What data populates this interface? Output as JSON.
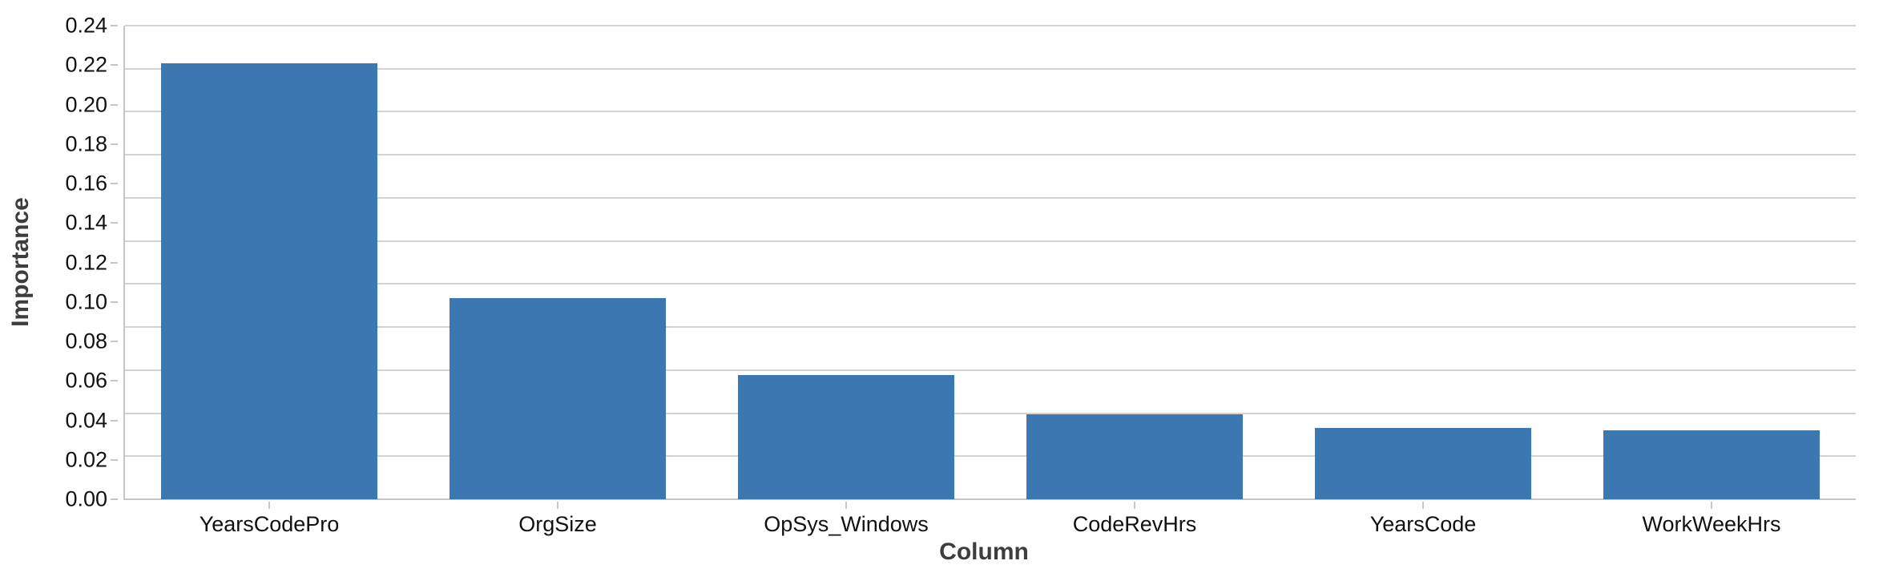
{
  "chart_data": {
    "type": "bar",
    "title": "",
    "xlabel": "Column",
    "ylabel": "Importance",
    "categories": [
      "YearsCodePro",
      "OrgSize",
      "OpSys_Windows",
      "CodeRevHrs",
      "YearsCode",
      "WorkWeekHrs"
    ],
    "values": [
      0.221,
      0.102,
      0.063,
      0.043,
      0.036,
      0.035
    ],
    "ylim": [
      0,
      0.24
    ],
    "y_ticks": [
      "0.00",
      "0.02",
      "0.04",
      "0.06",
      "0.08",
      "0.10",
      "0.12",
      "0.14",
      "0.16",
      "0.18",
      "0.20",
      "0.22",
      "0.24"
    ],
    "grid": true,
    "n_gridlines": 12,
    "legend_position": "none",
    "colors": {
      "bar": "#3B77B0",
      "gridline": "#D2D2D2",
      "axis_line": "#C6C6C6",
      "tick_label": "#111111",
      "axis_title": "#3D3D3D",
      "background": "#FFFFFF"
    },
    "bar_slot_fraction": 0.75
  }
}
